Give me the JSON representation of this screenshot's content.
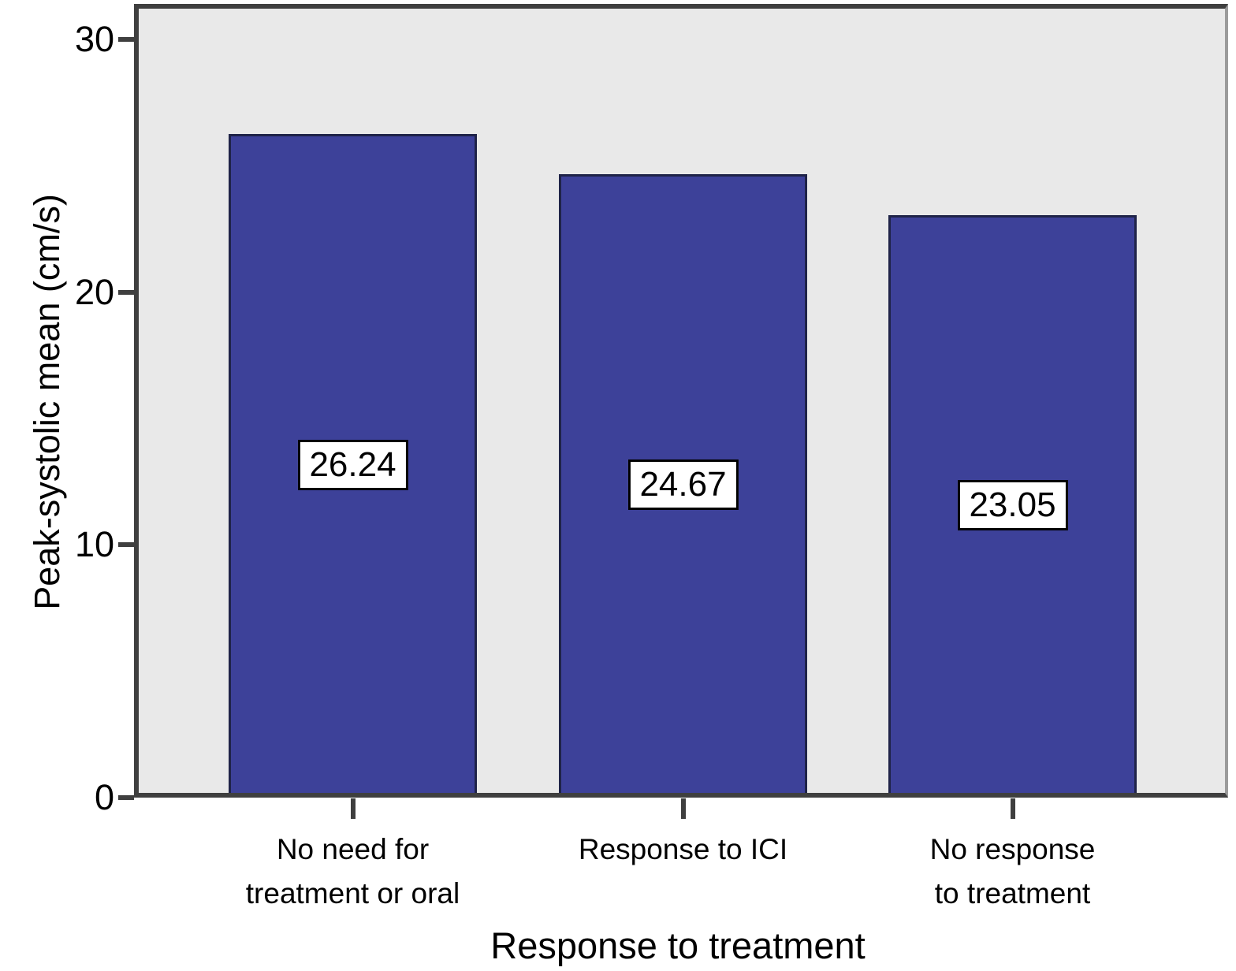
{
  "chart_data": {
    "type": "bar",
    "categories": [
      "No need for\ntreatment or oral",
      "Response to ICI",
      "No response\nto treatment"
    ],
    "values": [
      26.24,
      24.67,
      23.05
    ],
    "value_labels": [
      "26.24",
      "24.67",
      "23.05"
    ],
    "title": "",
    "xlabel": "Response to treatment",
    "ylabel": "Peak-systolic mean (cm/s)",
    "ylim": [
      0,
      31.2
    ],
    "yticks": [
      0,
      10,
      20,
      30
    ],
    "grid": false,
    "legend_position": "none",
    "colors": {
      "bar_fill": "#3d4199",
      "bar_border": "#1f2348",
      "plot_background": "#e9e9e9",
      "frame_dark": "#3f3f3f",
      "frame_light": "#9b9b9b",
      "label_box_background": "#ffffff",
      "label_box_border": "#000000",
      "text": "#000000"
    }
  }
}
